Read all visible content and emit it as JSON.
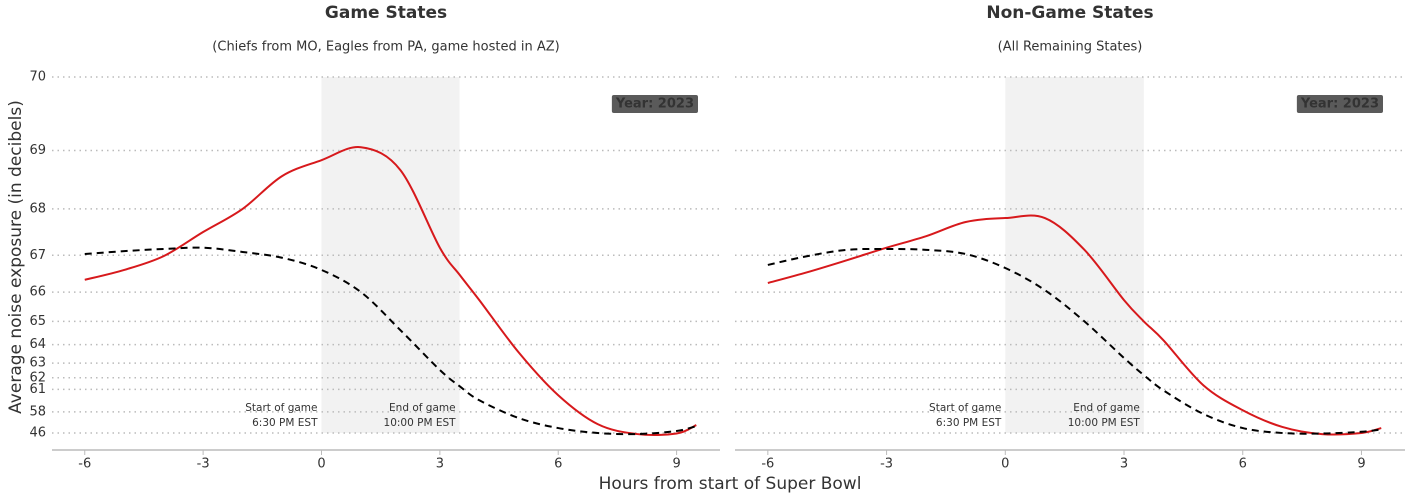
{
  "chart_data": [
    {
      "type": "line",
      "title": "Game States",
      "subtitle": "(Chiefs from MO, Eagles from PA, game hosted in AZ)",
      "x": [
        -6,
        -5,
        -4,
        -3,
        -2,
        -1,
        0,
        1,
        2,
        3,
        3.5,
        4,
        5,
        6,
        7,
        8,
        9,
        9.5
      ],
      "series": [
        {
          "color": "#d7191c",
          "dash": false,
          "values": [
            66.36,
            66.63,
            66.98,
            67.53,
            68.0,
            68.59,
            68.85,
            69.05,
            68.69,
            67.18,
            66.5,
            65.75,
            63.6,
            60.4,
            54.6,
            40,
            44,
            54.2
          ]
        },
        {
          "color": "#000000",
          "dash": true,
          "values": [
            67.03,
            67.1,
            67.15,
            67.18,
            67.08,
            66.94,
            66.63,
            66.0,
            64.65,
            62.56,
            61.3,
            59.8,
            56.6,
            52.5,
            46,
            40,
            49.8,
            53.7
          ]
        }
      ],
      "xlim": [
        -6.83,
        10.1
      ],
      "xticks": [
        -6,
        -3,
        0,
        3,
        6,
        9
      ],
      "ylim": [
        46,
        70
      ],
      "yticks": [
        46,
        58,
        61,
        62,
        63,
        64,
        65,
        66,
        67,
        68,
        69,
        70
      ],
      "yscale": "power",
      "shade": [
        0,
        3.5
      ],
      "shade_color": "#f2f2f2",
      "annotations": [
        {
          "x": 0,
          "lines": [
            "Start of game",
            "6:30 PM EST"
          ]
        },
        {
          "x": 3.5,
          "lines": [
            "End of game",
            "10:00 PM EST"
          ]
        }
      ],
      "badge": "Year: 2023",
      "grid": true
    },
    {
      "type": "line",
      "title": "Non-Game States",
      "subtitle": "(All Remaining States)",
      "x": [
        -6,
        -5,
        -4,
        -3,
        -2,
        -1,
        0,
        1,
        2,
        3,
        3.5,
        4,
        5,
        6,
        7,
        8,
        9,
        9.5
      ],
      "series": [
        {
          "color": "#d7191c",
          "dash": false,
          "values": [
            66.27,
            66.57,
            66.88,
            67.18,
            67.44,
            67.74,
            67.82,
            67.82,
            67.13,
            65.75,
            65.0,
            64.2,
            61.4,
            58.3,
            53.2,
            40,
            46,
            52.5
          ]
        },
        {
          "color": "#000000",
          "dash": true,
          "values": [
            66.76,
            66.98,
            67.13,
            67.15,
            67.13,
            67.03,
            66.68,
            66.06,
            65.0,
            63.3,
            62.2,
            60.9,
            57.6,
            52.5,
            46,
            44,
            48.7,
            51.5
          ]
        }
      ],
      "xlim": [
        -6.83,
        10.1
      ],
      "xticks": [
        -6,
        -3,
        0,
        3,
        6,
        9
      ],
      "ylim": [
        46,
        70
      ],
      "yticks": [
        46,
        58,
        61,
        62,
        63,
        64,
        65,
        66,
        67,
        68,
        69,
        70
      ],
      "yscale": "power",
      "shade": [
        0,
        3.5
      ],
      "shade_color": "#f2f2f2",
      "annotations": [
        {
          "x": 0,
          "lines": [
            "Start of game",
            "6:30 PM EST"
          ]
        },
        {
          "x": 3.5,
          "lines": [
            "End of game",
            "10:00 PM EST"
          ]
        }
      ],
      "badge": "Year: 2023",
      "grid": true
    }
  ],
  "xlabel": "Hours from start of Super Bowl",
  "ylabel": "Average noise exposure (in decibels)"
}
